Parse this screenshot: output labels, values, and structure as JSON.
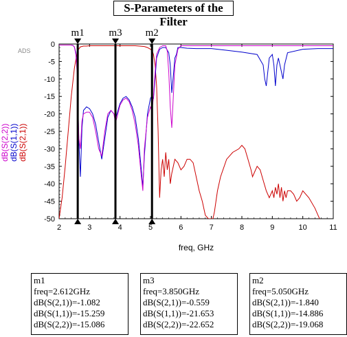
{
  "title": "S-Parameters of the Filter",
  "watermark": "ADS",
  "chart_data": {
    "type": "line",
    "xlabel": "freq, GHz",
    "xlim": [
      2,
      11
    ],
    "ylim": [
      -50,
      0
    ],
    "xticks": [
      "2",
      "3",
      "4",
      "5",
      "6",
      "7",
      "8",
      "9",
      "10",
      "11"
    ],
    "yticks": [
      "0",
      "-5",
      "-10",
      "-15",
      "-20",
      "-25",
      "-30",
      "-35",
      "-40",
      "-45",
      "-50"
    ],
    "grid": false,
    "ylabels": [
      "dB(S(2,2))",
      "dB(S(1,1))",
      "dB(S(2,1))"
    ],
    "series": [
      {
        "name": "dB(S(2,1))",
        "color": "#cc0000",
        "x": [
          2.0,
          2.1,
          2.2,
          2.3,
          2.4,
          2.5,
          2.6,
          2.7,
          2.8,
          2.9,
          3.0,
          3.5,
          4.0,
          4.5,
          4.8,
          4.9,
          5.0,
          5.05,
          5.1,
          5.15,
          5.2,
          5.25,
          5.3,
          5.35,
          5.4,
          5.45,
          5.5,
          5.55,
          5.6,
          5.65,
          5.7,
          5.8,
          5.9,
          6.0,
          6.1,
          6.2,
          6.3,
          6.4,
          6.5,
          6.6,
          6.7,
          6.8,
          6.9,
          7.0,
          7.05,
          7.1,
          7.2,
          7.3,
          7.5,
          7.7,
          7.9,
          8.0,
          8.1,
          8.2,
          8.3,
          8.35,
          8.4,
          8.5,
          8.6,
          8.7,
          8.8,
          8.9,
          9.0,
          9.05,
          9.1,
          9.15,
          9.2,
          9.25,
          9.3,
          9.35,
          9.4,
          9.45,
          9.5,
          9.6,
          9.7,
          9.8,
          9.9,
          10.0,
          10.2,
          10.4,
          10.5,
          10.55
        ],
        "y": [
          -50,
          -44,
          -35,
          -25,
          -15,
          -7,
          -2,
          -0.8,
          -0.6,
          -0.6,
          -0.5,
          -0.5,
          -0.5,
          -0.5,
          -0.7,
          -1.0,
          -1.5,
          -1.84,
          -3,
          -6,
          -12,
          -25,
          -44,
          -36,
          -33,
          -38,
          -31,
          -36,
          -33,
          -40,
          -37,
          -33,
          -34,
          -36,
          -35,
          -33,
          -33,
          -34,
          -38,
          -42,
          -45,
          -49,
          -50,
          -50,
          -50,
          -48,
          -42,
          -38,
          -33,
          -31,
          -30,
          -29,
          -30,
          -33,
          -36,
          -38,
          -37,
          -35,
          -36,
          -39,
          -42,
          -44,
          -42,
          -44,
          -41,
          -43,
          -40,
          -44,
          -41,
          -45,
          -42,
          -44,
          -42,
          -42,
          -43,
          -45,
          -44,
          -42,
          -44,
          -47,
          -49,
          -50
        ]
      },
      {
        "name": "dB(S(1,1))",
        "color": "#0000cc",
        "x": [
          2.0,
          2.3,
          2.4,
          2.45,
          2.5,
          2.55,
          2.6,
          2.612,
          2.65,
          2.7,
          2.75,
          2.8,
          2.9,
          3.0,
          3.1,
          3.2,
          3.3,
          3.4,
          3.5,
          3.6,
          3.7,
          3.8,
          3.85,
          3.9,
          4.0,
          4.1,
          4.2,
          4.3,
          4.4,
          4.5,
          4.6,
          4.7,
          4.75,
          4.8,
          4.9,
          5.0,
          5.05,
          5.1,
          5.15,
          5.2,
          5.3,
          5.4,
          5.5,
          5.6,
          5.65,
          5.7,
          5.75,
          5.8,
          5.85,
          5.9,
          6.0,
          6.2,
          6.5,
          7.0,
          7.5,
          8.0,
          8.5,
          8.7,
          8.75,
          8.8,
          8.85,
          8.9,
          9.0,
          9.05,
          9.1,
          9.15,
          9.2,
          9.3,
          9.35,
          9.4,
          9.5,
          10.0,
          10.5,
          11.0
        ],
        "y": [
          -0.3,
          -0.3,
          -0.3,
          -0.4,
          -0.8,
          -2.5,
          -8,
          -15.26,
          -28,
          -38,
          -24,
          -19,
          -18,
          -18.5,
          -20,
          -23,
          -28,
          -33,
          -27,
          -21,
          -19,
          -20,
          -21.65,
          -20,
          -17,
          -15.5,
          -15,
          -16,
          -18,
          -21,
          -27,
          -36,
          -41,
          -32,
          -20,
          -15.5,
          -14.89,
          -15.5,
          -10,
          -4,
          -1.5,
          -1,
          -1,
          -2.5,
          -6,
          -14,
          -9,
          -4,
          -3,
          -1,
          -1,
          -1.2,
          -1.3,
          -1.3,
          -1.8,
          -2.3,
          -3.0,
          -6,
          -10,
          -12,
          -8,
          -4,
          -3,
          -6,
          -12,
          -6,
          -4,
          -8,
          -10,
          -6,
          -2.5,
          -1.5,
          -1.3,
          -1.3
        ]
      },
      {
        "name": "dB(S(2,2))",
        "color": "#cc00cc",
        "x": [
          2.0,
          2.3,
          2.4,
          2.45,
          2.5,
          2.55,
          2.6,
          2.612,
          2.65,
          2.7,
          2.75,
          2.8,
          2.9,
          3.0,
          3.1,
          3.2,
          3.3,
          3.4,
          3.5,
          3.6,
          3.7,
          3.8,
          3.85,
          3.9,
          4.0,
          4.1,
          4.2,
          4.3,
          4.4,
          4.5,
          4.6,
          4.7,
          4.75,
          4.8,
          4.9,
          5.0,
          5.05,
          5.1,
          5.15,
          5.2,
          5.3,
          5.4,
          5.5,
          5.55,
          5.6,
          5.65,
          5.7,
          5.8,
          5.9,
          6.0,
          6.5,
          7.0,
          8.0,
          9.0,
          10.0,
          11.0
        ],
        "y": [
          -0.3,
          -0.3,
          -0.3,
          -0.4,
          -0.8,
          -3,
          -9,
          -15.09,
          -27,
          -30,
          -22,
          -20,
          -19.5,
          -19.5,
          -21,
          -25,
          -30,
          -32,
          -25,
          -20,
          -19,
          -20,
          -22.65,
          -21,
          -17.5,
          -16,
          -15.5,
          -16.5,
          -19,
          -23,
          -29,
          -38,
          -42,
          -30,
          -21,
          -18,
          -19.07,
          -15,
          -8,
          -3,
          -1,
          -0.5,
          -0.5,
          -2,
          -8,
          -18,
          -24,
          -6,
          -1.5,
          -0.5,
          -0.5,
          -0.5,
          -0.5,
          -0.5,
          -0.5,
          -0.5
        ]
      }
    ],
    "markers": [
      {
        "name": "m1",
        "x": 2.612
      },
      {
        "name": "m3",
        "x": 3.85
      },
      {
        "name": "m2",
        "x": 5.05
      }
    ]
  },
  "marker_tables": [
    {
      "name": "m1",
      "lines": [
        "freq=2.612GHz",
        "dB(S(2,1))=-1.082",
        "dB(S(1,1))=-15.259",
        "dB(S(2,2))=-15.086"
      ]
    },
    {
      "name": "m3",
      "lines": [
        "freq=3.850GHz",
        "dB(S(2,1))=-0.559",
        "dB(S(1,1))=-21.653",
        "dB(S(2,2))=-22.652"
      ]
    },
    {
      "name": "m2",
      "lines": [
        "freq=5.050GHz",
        "dB(S(2,1))=-1.840",
        "dB(S(1,1))=-14.886",
        "dB(S(2,2))=-19.068"
      ]
    }
  ]
}
